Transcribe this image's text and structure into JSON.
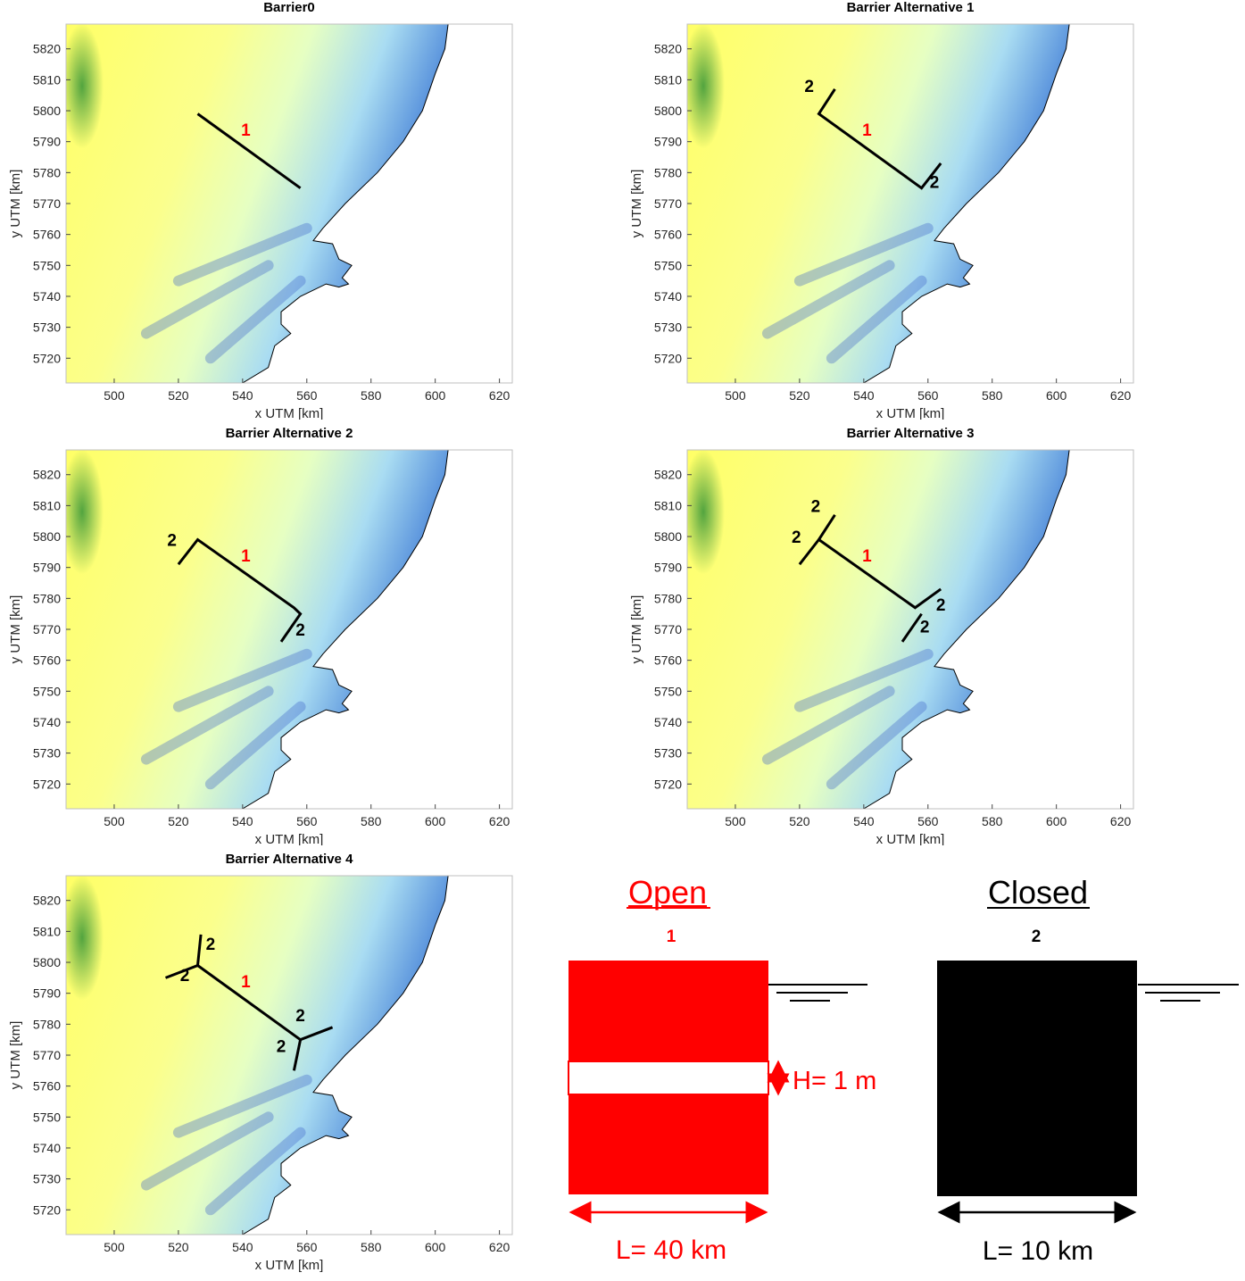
{
  "colors": {
    "land_low": "#ffff66",
    "land_mid": "#e6ffc2",
    "shallow": "#8cc8f0",
    "deep": "#1a2f9a",
    "vegetation": "#3f9a3a",
    "open_red": "#ff0000",
    "closed_black": "#000000"
  },
  "axes": {
    "xlabel": "x UTM [km]",
    "ylabel": "y UTM [km]",
    "xticks": [
      "500",
      "520",
      "540",
      "560",
      "580",
      "600",
      "620"
    ],
    "yticks": [
      "5820",
      "5810",
      "5800",
      "5790",
      "5780",
      "5770",
      "5760",
      "5750",
      "5740",
      "5730",
      "5720"
    ],
    "xlim": [
      485,
      624
    ],
    "ylim": [
      5712,
      5828
    ]
  },
  "panels": [
    {
      "id": "p0",
      "title": "Barrier0"
    },
    {
      "id": "p1",
      "title": "Barrier Alternative 1"
    },
    {
      "id": "p2",
      "title": "Barrier Alternative 2"
    },
    {
      "id": "p3",
      "title": "Barrier Alternative 3"
    },
    {
      "id": "p4",
      "title": "Barrier Alternative 4"
    }
  ],
  "barrier_labels": {
    "open": "1",
    "closed": "2"
  },
  "legend": {
    "open": {
      "title": "Open",
      "number": "1",
      "height_label": "H= 1 m",
      "length_label": "L= 40 km"
    },
    "closed": {
      "title": "Closed",
      "number": "2",
      "length_label": "L= 10 km"
    }
  }
}
